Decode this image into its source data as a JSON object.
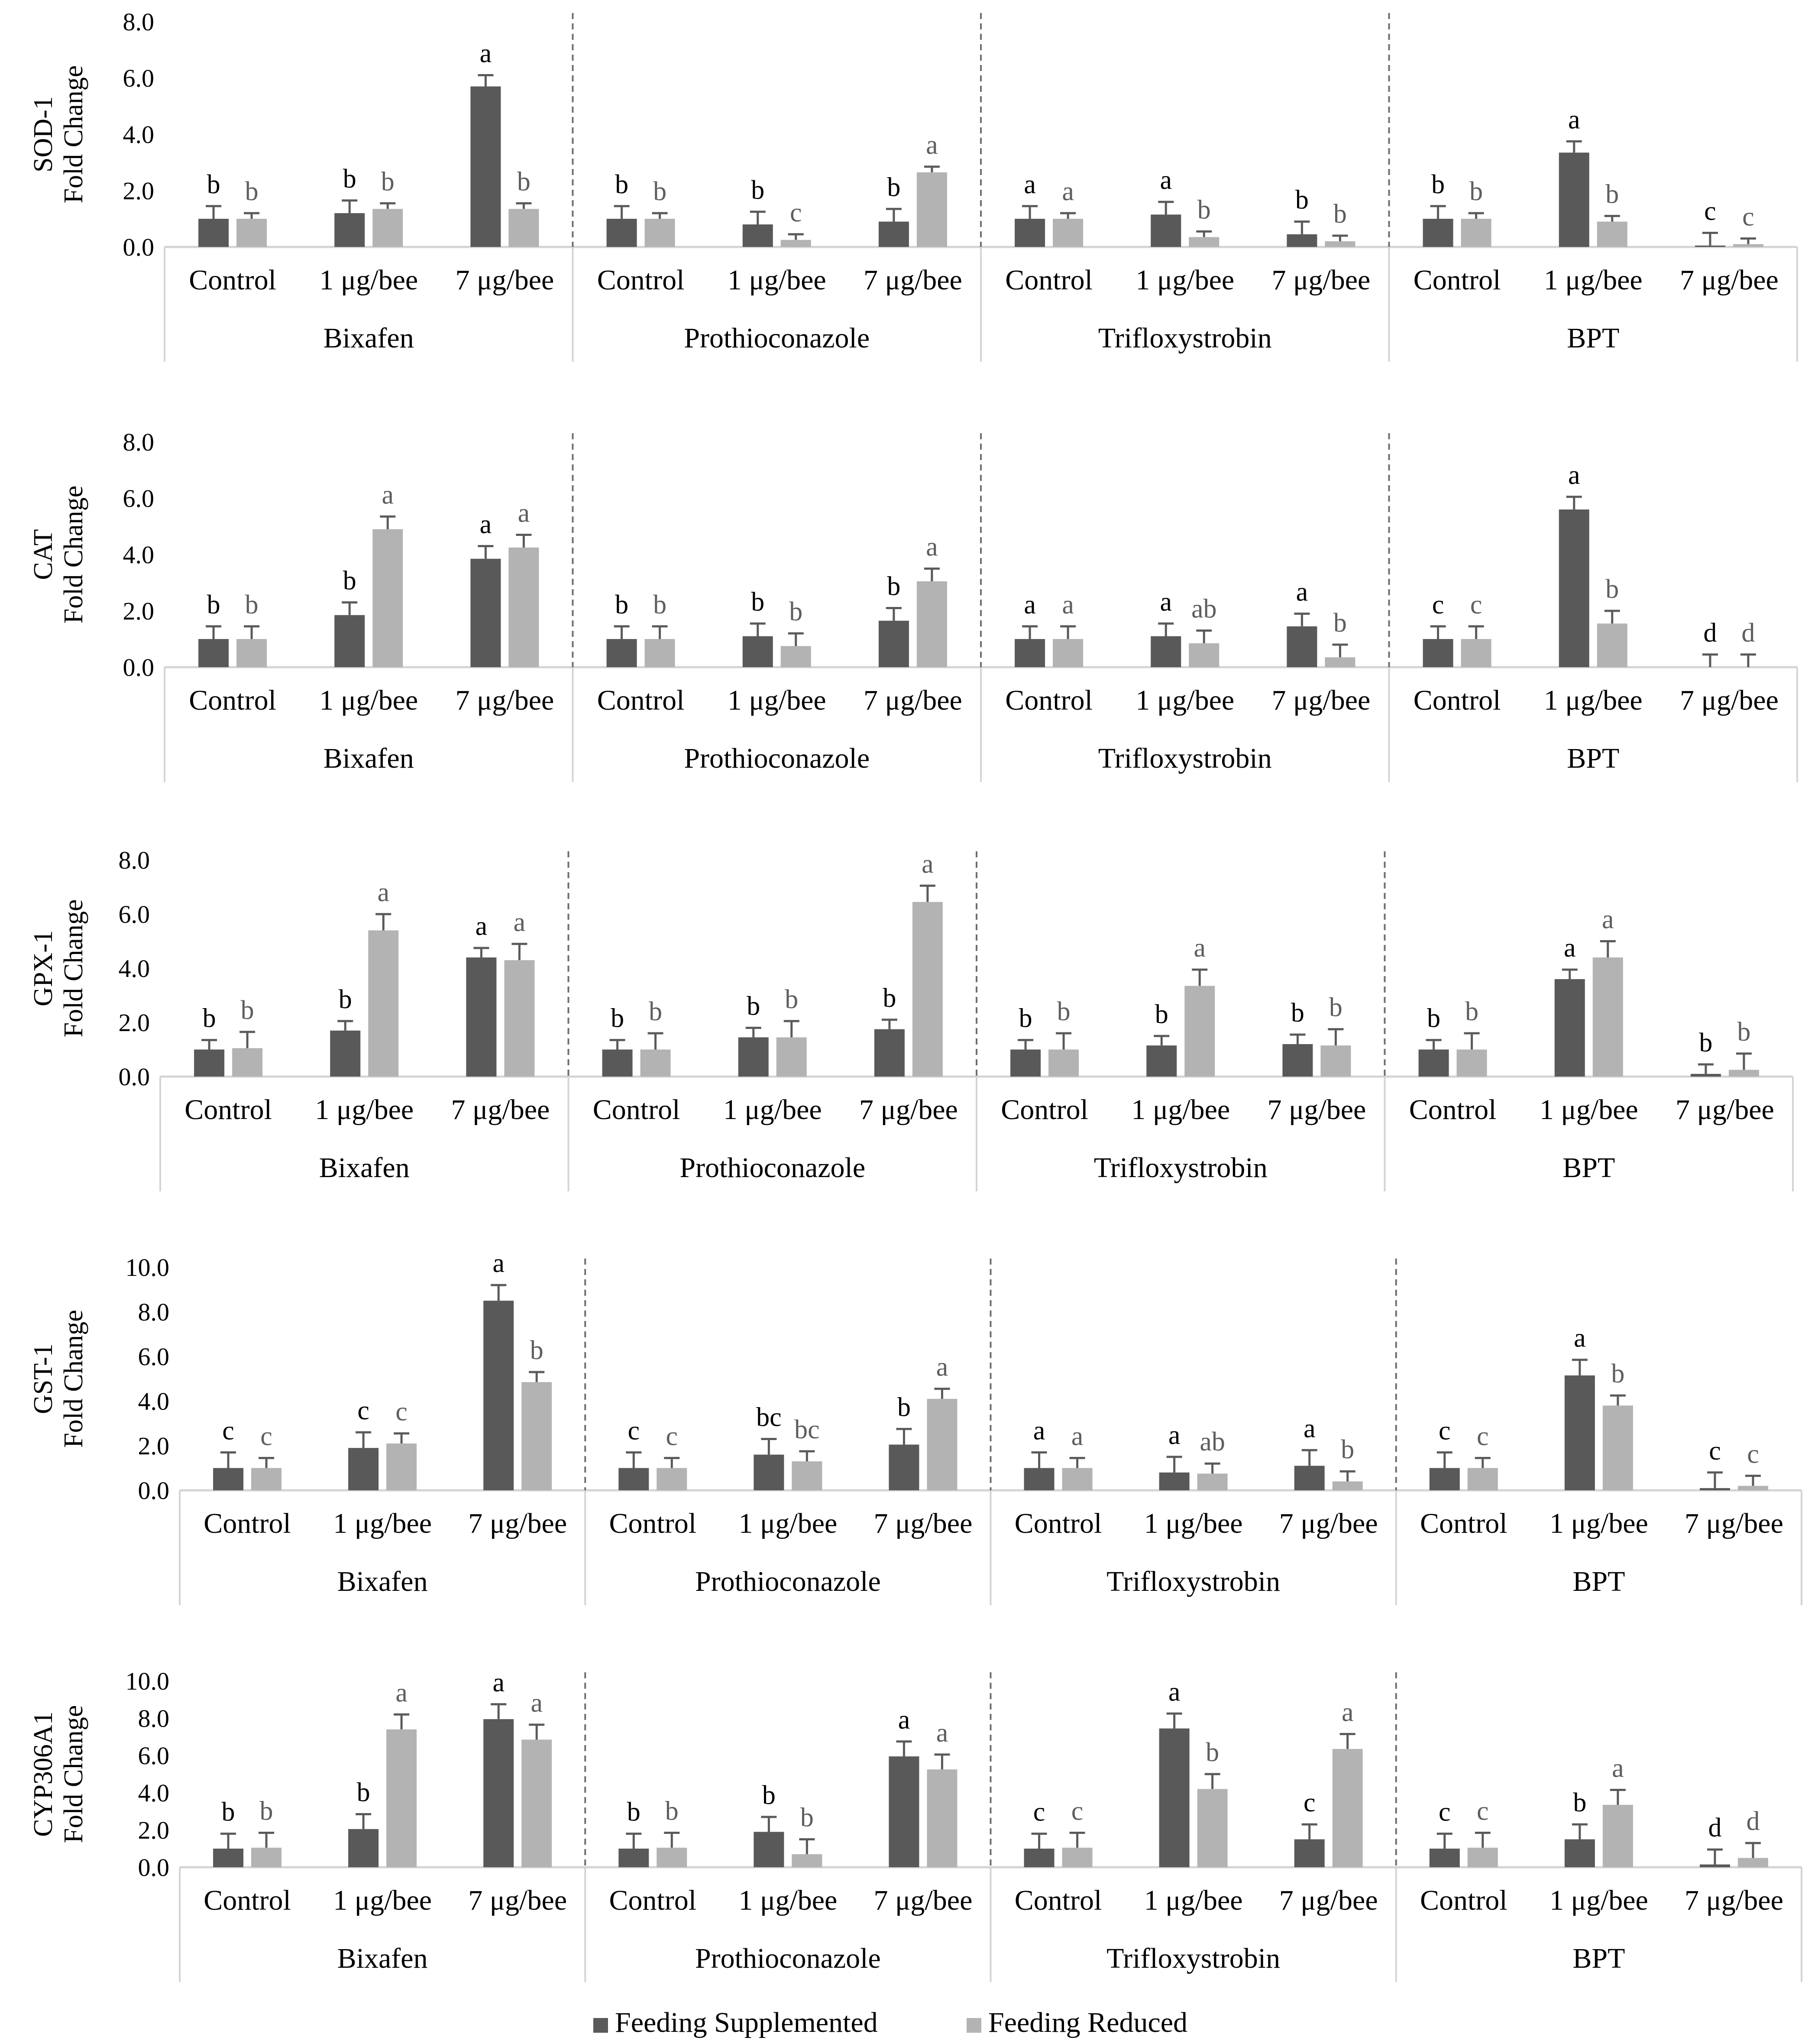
{
  "legend": {
    "series": [
      {
        "name": "Feeding Supplemented",
        "color": "#595959"
      },
      {
        "name": "Feeding Reduced",
        "color": "#b3b3b3"
      }
    ]
  },
  "chart_data": [
    {
      "type": "bar",
      "ylabel": [
        "SOD-1",
        "Fold Change"
      ],
      "ylim": [
        0,
        8
      ],
      "ytick_labels": [
        "0.0",
        "2.0",
        "4.0",
        "6.0",
        "8.0"
      ],
      "groups": [
        "Bixafen",
        "Prothioconazole",
        "Trifloxystrobin",
        "BPT"
      ],
      "categories": [
        "Control",
        "1 μg/bee",
        "7 μg/bee"
      ],
      "series": [
        {
          "name": "Feeding Supplemented",
          "values": [
            [
              1.0,
              1.2,
              5.7
            ],
            [
              1.0,
              0.8,
              0.9
            ],
            [
              1.0,
              1.15,
              0.45
            ],
            [
              1.0,
              3.35,
              0.05
            ]
          ],
          "errors": [
            [
              0.45,
              0.45,
              0.4
            ],
            [
              0.45,
              0.45,
              0.45
            ],
            [
              0.45,
              0.45,
              0.45
            ],
            [
              0.45,
              0.4,
              0.45
            ]
          ],
          "letters": [
            [
              "b",
              "b",
              "a"
            ],
            [
              "b",
              "b",
              "b"
            ],
            [
              "a",
              "a",
              "b"
            ],
            [
              "b",
              "a",
              "c"
            ]
          ]
        },
        {
          "name": "Feeding Reduced",
          "values": [
            [
              1.0,
              1.35,
              1.35
            ],
            [
              1.0,
              0.25,
              2.65
            ],
            [
              1.0,
              0.35,
              0.2
            ],
            [
              1.0,
              0.9,
              0.1
            ]
          ],
          "errors": [
            [
              0.2,
              0.2,
              0.2
            ],
            [
              0.2,
              0.2,
              0.2
            ],
            [
              0.2,
              0.2,
              0.2
            ],
            [
              0.2,
              0.2,
              0.2
            ]
          ],
          "letters": [
            [
              "b",
              "b",
              "b"
            ],
            [
              "b",
              "c",
              "a"
            ],
            [
              "a",
              "b",
              "b"
            ],
            [
              "b",
              "b",
              "c"
            ]
          ]
        }
      ]
    },
    {
      "type": "bar",
      "ylabel": [
        "CAT",
        "Fold Change"
      ],
      "ylim": [
        0,
        8
      ],
      "ytick_labels": [
        "0.0",
        "2.0",
        "4.0",
        "6.0",
        "8.0"
      ],
      "groups": [
        "Bixafen",
        "Prothioconazole",
        "Trifloxystrobin",
        "BPT"
      ],
      "categories": [
        "Control",
        "1 μg/bee",
        "7 μg/bee"
      ],
      "series": [
        {
          "name": "Feeding Supplemented",
          "values": [
            [
              1.0,
              1.85,
              3.85
            ],
            [
              1.0,
              1.1,
              1.65
            ],
            [
              1.0,
              1.1,
              1.45
            ],
            [
              1.0,
              5.6,
              0.0
            ]
          ],
          "errors": [
            [
              0.45,
              0.45,
              0.45
            ],
            [
              0.45,
              0.45,
              0.45
            ],
            [
              0.45,
              0.45,
              0.45
            ],
            [
              0.45,
              0.45,
              0.45
            ]
          ],
          "letters": [
            [
              "b",
              "b",
              "a"
            ],
            [
              "b",
              "b",
              "b"
            ],
            [
              "a",
              "a",
              "a"
            ],
            [
              "c",
              "a",
              "d"
            ]
          ]
        },
        {
          "name": "Feeding Reduced",
          "values": [
            [
              1.0,
              4.9,
              4.25
            ],
            [
              1.0,
              0.75,
              3.05
            ],
            [
              1.0,
              0.85,
              0.35
            ],
            [
              1.0,
              1.55,
              0.0
            ]
          ],
          "errors": [
            [
              0.45,
              0.45,
              0.45
            ],
            [
              0.45,
              0.45,
              0.45
            ],
            [
              0.45,
              0.45,
              0.45
            ],
            [
              0.45,
              0.45,
              0.45
            ]
          ],
          "letters": [
            [
              "b",
              "a",
              "a"
            ],
            [
              "b",
              "b",
              "a"
            ],
            [
              "a",
              "ab",
              "b"
            ],
            [
              "c",
              "b",
              "d"
            ]
          ]
        }
      ]
    },
    {
      "type": "bar",
      "ylabel": [
        "GPX-1",
        "Fold Change"
      ],
      "ylim": [
        0,
        8
      ],
      "ytick_labels": [
        "0.0",
        "2.0",
        "4.0",
        "6.0",
        "8.0"
      ],
      "groups": [
        "Bixafen",
        "Prothioconazole",
        "Trifloxystrobin",
        "BPT"
      ],
      "categories": [
        "Control",
        "1 μg/bee",
        "7 μg/bee"
      ],
      "series": [
        {
          "name": "Feeding Supplemented",
          "values": [
            [
              1.0,
              1.7,
              4.4
            ],
            [
              1.0,
              1.45,
              1.75
            ],
            [
              1.0,
              1.15,
              1.2
            ],
            [
              1.0,
              3.6,
              0.1
            ]
          ],
          "errors": [
            [
              0.35,
              0.35,
              0.35
            ],
            [
              0.35,
              0.35,
              0.35
            ],
            [
              0.35,
              0.35,
              0.35
            ],
            [
              0.35,
              0.35,
              0.35
            ]
          ],
          "letters": [
            [
              "b",
              "b",
              "a"
            ],
            [
              "b",
              "b",
              "b"
            ],
            [
              "b",
              "b",
              "b"
            ],
            [
              "b",
              "a",
              "b"
            ]
          ]
        },
        {
          "name": "Feeding Reduced",
          "values": [
            [
              1.05,
              5.4,
              4.3
            ],
            [
              1.0,
              1.45,
              6.45
            ],
            [
              1.0,
              3.35,
              1.15
            ],
            [
              1.0,
              4.4,
              0.25
            ]
          ],
          "errors": [
            [
              0.6,
              0.6,
              0.6
            ],
            [
              0.6,
              0.6,
              0.6
            ],
            [
              0.6,
              0.6,
              0.6
            ],
            [
              0.6,
              0.6,
              0.6
            ]
          ],
          "letters": [
            [
              "b",
              "a",
              "a"
            ],
            [
              "b",
              "b",
              "a"
            ],
            [
              "b",
              "a",
              "b"
            ],
            [
              "b",
              "a",
              "b"
            ]
          ]
        }
      ]
    },
    {
      "type": "bar",
      "ylabel": [
        "GST-1",
        "Fold Change"
      ],
      "ylim": [
        0,
        10
      ],
      "ytick_labels": [
        "0.0",
        "2.0",
        "4.0",
        "6.0",
        "8.0",
        "10.0"
      ],
      "groups": [
        "Bixafen",
        "Prothioconazole",
        "Trifloxystrobin",
        "BPT"
      ],
      "categories": [
        "Control",
        "1 μg/bee",
        "7 μg/bee"
      ],
      "series": [
        {
          "name": "Feeding Supplemented",
          "values": [
            [
              1.0,
              1.9,
              8.5
            ],
            [
              1.0,
              1.6,
              2.05
            ],
            [
              1.0,
              0.8,
              1.1
            ],
            [
              1.0,
              5.15,
              0.1
            ]
          ],
          "errors": [
            [
              0.7,
              0.7,
              0.7
            ],
            [
              0.7,
              0.7,
              0.7
            ],
            [
              0.7,
              0.7,
              0.7
            ],
            [
              0.7,
              0.7,
              0.7
            ]
          ],
          "letters": [
            [
              "c",
              "c",
              "a"
            ],
            [
              "c",
              "bc",
              "b"
            ],
            [
              "a",
              "a",
              "a"
            ],
            [
              "c",
              "a",
              "c"
            ]
          ]
        },
        {
          "name": "Feeding Reduced",
          "values": [
            [
              1.0,
              2.1,
              4.85
            ],
            [
              1.0,
              1.3,
              4.1
            ],
            [
              1.0,
              0.75,
              0.4
            ],
            [
              1.0,
              3.8,
              0.2
            ]
          ],
          "errors": [
            [
              0.45,
              0.45,
              0.45
            ],
            [
              0.45,
              0.45,
              0.45
            ],
            [
              0.45,
              0.45,
              0.45
            ],
            [
              0.45,
              0.45,
              0.45
            ]
          ],
          "letters": [
            [
              "c",
              "c",
              "b"
            ],
            [
              "c",
              "bc",
              "a"
            ],
            [
              "a",
              "ab",
              "b"
            ],
            [
              "c",
              "b",
              "c"
            ]
          ]
        }
      ]
    },
    {
      "type": "bar",
      "ylabel": [
        "CYP306A1",
        "Fold Change"
      ],
      "ylim": [
        0,
        10
      ],
      "ytick_labels": [
        "0.0",
        "2.0",
        "4.0",
        "6.0",
        "8.0",
        "10.0"
      ],
      "groups": [
        "Bixafen",
        "Prothioconazole",
        "Trifloxystrobin",
        "BPT"
      ],
      "categories": [
        "Control",
        "1 μg/bee",
        "7 μg/bee"
      ],
      "series": [
        {
          "name": "Feeding Supplemented",
          "values": [
            [
              1.0,
              2.05,
              7.95
            ],
            [
              1.0,
              1.9,
              5.95
            ],
            [
              1.0,
              7.45,
              1.5
            ],
            [
              1.0,
              1.5,
              0.15
            ]
          ],
          "errors": [
            [
              0.8,
              0.8,
              0.8
            ],
            [
              0.8,
              0.8,
              0.8
            ],
            [
              0.8,
              0.8,
              0.8
            ],
            [
              0.8,
              0.8,
              0.8
            ]
          ],
          "letters": [
            [
              "b",
              "b",
              "a"
            ],
            [
              "b",
              "b",
              "a"
            ],
            [
              "c",
              "a",
              "c"
            ],
            [
              "c",
              "b",
              "d"
            ]
          ]
        },
        {
          "name": "Feeding Reduced",
          "values": [
            [
              1.05,
              7.4,
              6.85
            ],
            [
              1.05,
              0.7,
              5.25
            ],
            [
              1.05,
              4.2,
              6.35
            ],
            [
              1.05,
              3.35,
              0.5
            ]
          ],
          "errors": [
            [
              0.8,
              0.8,
              0.8
            ],
            [
              0.8,
              0.8,
              0.8
            ],
            [
              0.8,
              0.8,
              0.8
            ],
            [
              0.8,
              0.8,
              0.8
            ]
          ],
          "letters": [
            [
              "b",
              "a",
              "a"
            ],
            [
              "b",
              "b",
              "a"
            ],
            [
              "c",
              "b",
              "a"
            ],
            [
              "c",
              "a",
              "d"
            ]
          ]
        }
      ]
    }
  ]
}
